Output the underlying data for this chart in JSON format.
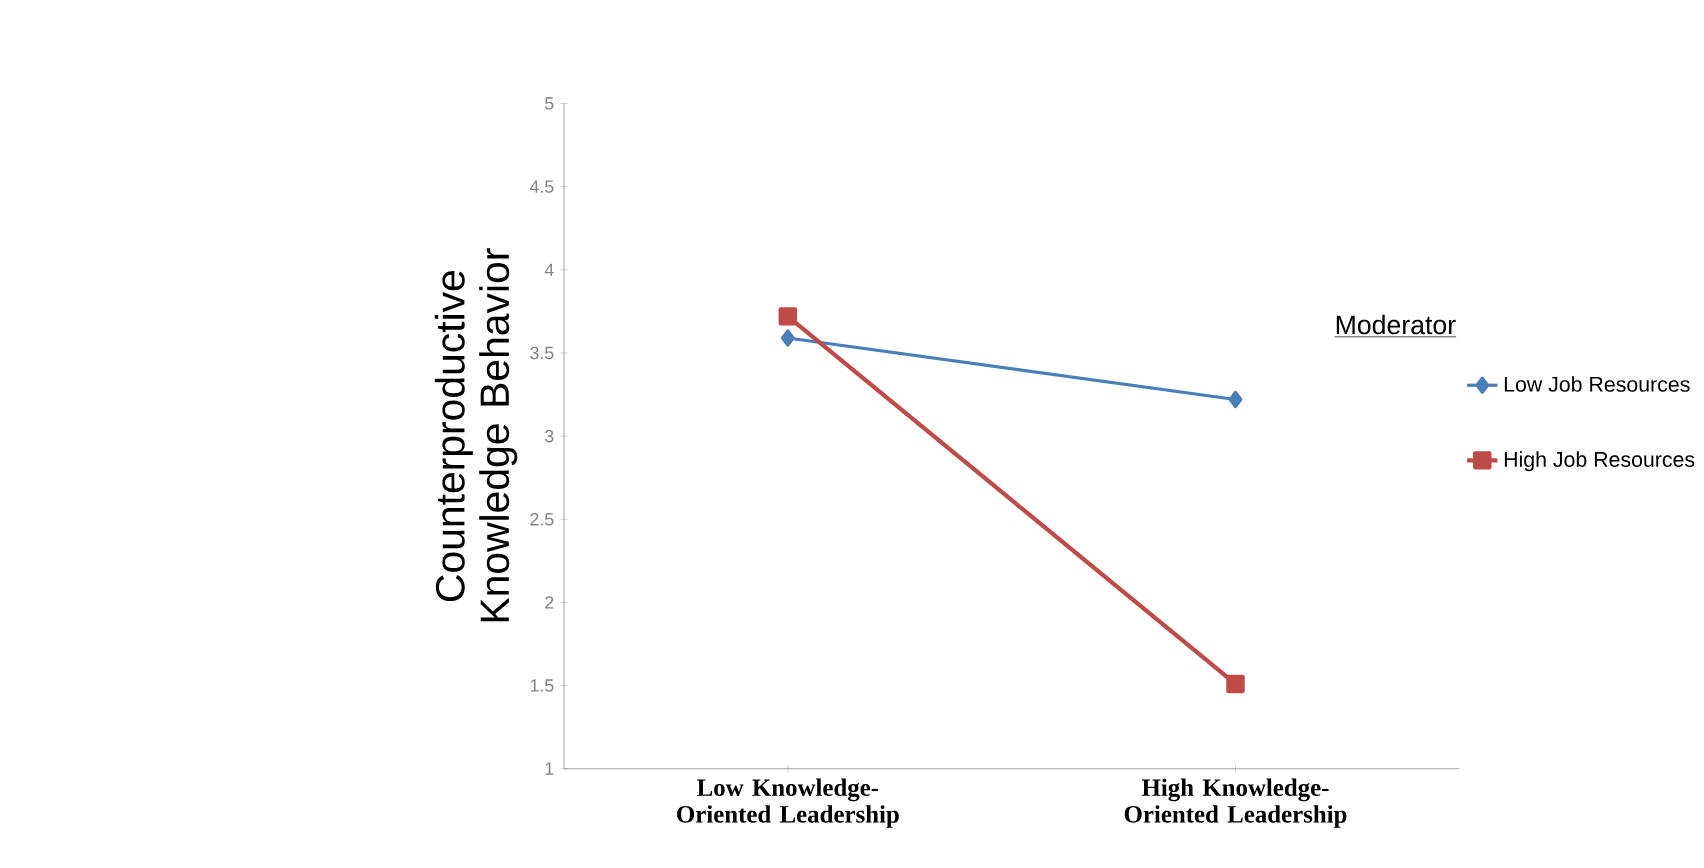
{
  "chart_data": {
    "type": "line",
    "categories": [
      "Low Knowledge-Oriented Leadership",
      "High Knowledge-Oriented Leadership"
    ],
    "ylabel": "Counterproductive Knowledge Behavior",
    "legend_title": "Moderator",
    "legend": "right",
    "ylim": [
      1,
      5
    ],
    "yticks": [
      1,
      1.5,
      2,
      2.5,
      3,
      3.5,
      4,
      4.5,
      5
    ],
    "series": [
      {
        "name": "Low Job Resources",
        "color": "#4a7ebb",
        "marker": "diamond",
        "values": [
          3.59,
          3.22
        ]
      },
      {
        "name": "High Job Resources",
        "color": "#be4b48",
        "marker": "square",
        "values": [
          3.72,
          1.51
        ]
      }
    ]
  }
}
